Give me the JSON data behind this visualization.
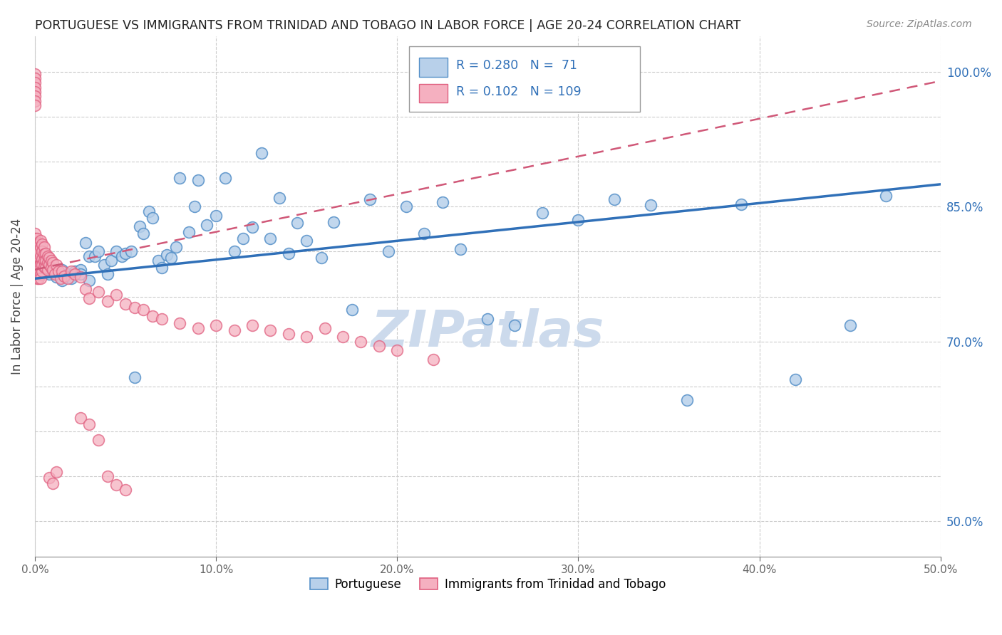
{
  "title": "PORTUGUESE VS IMMIGRANTS FROM TRINIDAD AND TOBAGO IN LABOR FORCE | AGE 20-24 CORRELATION CHART",
  "source": "Source: ZipAtlas.com",
  "ylabel": "In Labor Force | Age 20-24",
  "xlim": [
    0.0,
    0.5
  ],
  "ylim": [
    0.46,
    1.04
  ],
  "xticks": [
    0.0,
    0.1,
    0.2,
    0.3,
    0.4,
    0.5
  ],
  "ytick_vals": [
    0.5,
    0.55,
    0.6,
    0.65,
    0.7,
    0.75,
    0.8,
    0.85,
    0.9,
    0.95,
    1.0
  ],
  "ytick_labels": [
    "50.0%",
    "",
    "",
    "",
    "70.0%",
    "",
    "",
    "85.0%",
    "",
    "",
    "100.0%"
  ],
  "blue_R": 0.28,
  "blue_N": 71,
  "pink_R": 0.102,
  "pink_N": 109,
  "blue_fill": "#b8d0ea",
  "pink_fill": "#f5b0c0",
  "blue_edge": "#5590c8",
  "pink_edge": "#e06080",
  "blue_line": "#3070b8",
  "pink_line": "#d05878",
  "legend_blue": "Portuguese",
  "legend_pink": "Immigrants from Trinidad and Tobago",
  "watermark": "ZIPatlas",
  "watermark_color": "#ccdaec",
  "blue_x": [
    0.003,
    0.006,
    0.008,
    0.01,
    0.012,
    0.015,
    0.015,
    0.018,
    0.02,
    0.02,
    0.022,
    0.025,
    0.025,
    0.028,
    0.03,
    0.03,
    0.033,
    0.035,
    0.038,
    0.04,
    0.042,
    0.045,
    0.048,
    0.05,
    0.053,
    0.055,
    0.058,
    0.06,
    0.063,
    0.065,
    0.068,
    0.07,
    0.073,
    0.075,
    0.078,
    0.08,
    0.085,
    0.088,
    0.09,
    0.095,
    0.1,
    0.105,
    0.11,
    0.115,
    0.12,
    0.125,
    0.13,
    0.135,
    0.14,
    0.145,
    0.15,
    0.158,
    0.165,
    0.175,
    0.185,
    0.195,
    0.205,
    0.215,
    0.225,
    0.235,
    0.25,
    0.265,
    0.28,
    0.3,
    0.32,
    0.34,
    0.36,
    0.39,
    0.42,
    0.45,
    0.47
  ],
  "blue_y": [
    0.775,
    0.78,
    0.775,
    0.778,
    0.772,
    0.768,
    0.78,
    0.775,
    0.773,
    0.77,
    0.778,
    0.78,
    0.775,
    0.81,
    0.795,
    0.768,
    0.795,
    0.8,
    0.785,
    0.775,
    0.79,
    0.8,
    0.795,
    0.798,
    0.8,
    0.66,
    0.828,
    0.82,
    0.845,
    0.838,
    0.79,
    0.782,
    0.796,
    0.793,
    0.805,
    0.882,
    0.822,
    0.85,
    0.88,
    0.83,
    0.84,
    0.882,
    0.8,
    0.815,
    0.827,
    0.91,
    0.815,
    0.86,
    0.798,
    0.832,
    0.812,
    0.793,
    0.833,
    0.735,
    0.858,
    0.8,
    0.85,
    0.82,
    0.855,
    0.803,
    0.725,
    0.718,
    0.843,
    0.835,
    0.858,
    0.852,
    0.635,
    0.853,
    0.658,
    0.718,
    0.862
  ],
  "pink_x": [
    0.0,
    0.0,
    0.0,
    0.0,
    0.0,
    0.0,
    0.0,
    0.0,
    0.0,
    0.0,
    0.0,
    0.0,
    0.0,
    0.0,
    0.0,
    0.0,
    0.0,
    0.0,
    0.0,
    0.0,
    0.001,
    0.001,
    0.001,
    0.001,
    0.001,
    0.001,
    0.001,
    0.001,
    0.001,
    0.001,
    0.002,
    0.002,
    0.002,
    0.002,
    0.002,
    0.002,
    0.002,
    0.002,
    0.002,
    0.003,
    0.003,
    0.003,
    0.003,
    0.003,
    0.003,
    0.004,
    0.004,
    0.004,
    0.004,
    0.004,
    0.005,
    0.005,
    0.005,
    0.005,
    0.006,
    0.006,
    0.006,
    0.007,
    0.007,
    0.007,
    0.008,
    0.008,
    0.009,
    0.009,
    0.01,
    0.01,
    0.011,
    0.012,
    0.013,
    0.014,
    0.015,
    0.016,
    0.018,
    0.02,
    0.022,
    0.025,
    0.028,
    0.03,
    0.035,
    0.04,
    0.045,
    0.05,
    0.055,
    0.06,
    0.065,
    0.07,
    0.08,
    0.09,
    0.1,
    0.11,
    0.12,
    0.13,
    0.14,
    0.15,
    0.16,
    0.17,
    0.18,
    0.19,
    0.2,
    0.22,
    0.025,
    0.03,
    0.035,
    0.04,
    0.045,
    0.05,
    0.008,
    0.01,
    0.012
  ],
  "pink_y": [
    0.998,
    0.993,
    0.988,
    0.983,
    0.978,
    0.973,
    0.968,
    0.963,
    0.8,
    0.795,
    0.79,
    0.785,
    0.78,
    0.82,
    0.815,
    0.81,
    0.805,
    0.8,
    0.795,
    0.79,
    0.785,
    0.802,
    0.795,
    0.81,
    0.8,
    0.793,
    0.783,
    0.775,
    0.77,
    0.815,
    0.81,
    0.805,
    0.8,
    0.795,
    0.783,
    0.775,
    0.77,
    0.808,
    0.8,
    0.812,
    0.805,
    0.795,
    0.785,
    0.775,
    0.77,
    0.808,
    0.8,
    0.792,
    0.785,
    0.778,
    0.805,
    0.797,
    0.79,
    0.783,
    0.798,
    0.79,
    0.782,
    0.795,
    0.788,
    0.78,
    0.793,
    0.785,
    0.79,
    0.782,
    0.788,
    0.78,
    0.775,
    0.785,
    0.778,
    0.77,
    0.778,
    0.773,
    0.77,
    0.778,
    0.775,
    0.772,
    0.758,
    0.748,
    0.755,
    0.745,
    0.752,
    0.742,
    0.738,
    0.735,
    0.728,
    0.725,
    0.72,
    0.715,
    0.718,
    0.712,
    0.718,
    0.712,
    0.708,
    0.705,
    0.715,
    0.705,
    0.7,
    0.695,
    0.69,
    0.68,
    0.615,
    0.608,
    0.59,
    0.55,
    0.54,
    0.535,
    0.548,
    0.542,
    0.555
  ],
  "blue_trend_x": [
    0.0,
    0.5
  ],
  "blue_trend_y": [
    0.77,
    0.875
  ],
  "pink_trend_x": [
    0.0,
    0.5
  ],
  "pink_trend_y": [
    0.78,
    0.99
  ]
}
